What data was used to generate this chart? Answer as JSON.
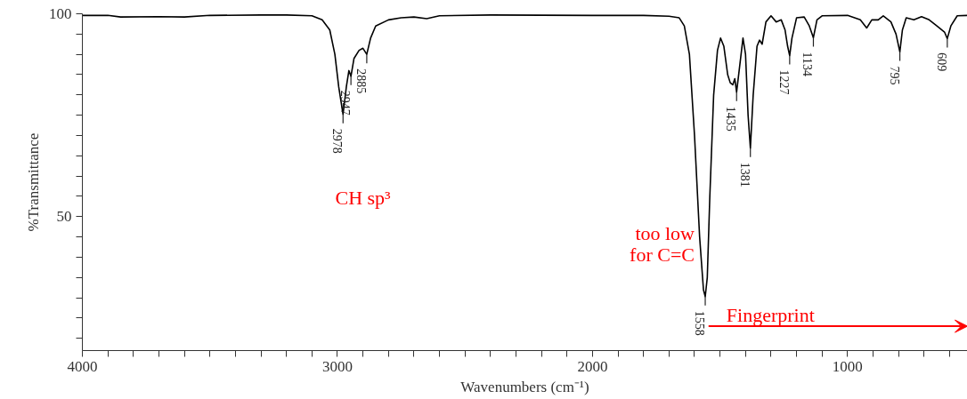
{
  "chart_data": {
    "type": "line",
    "xlabel": "Wavenumbers (cm⁻¹)",
    "ylabel": "%Transmittance",
    "xlim": [
      4000,
      530
    ],
    "ylim": [
      17,
      100
    ],
    "xticks": [
      4000,
      {
        "value": 3900,
        "label": null
      },
      {
        "value": 3800,
        "label": null
      },
      {
        "value": 3700,
        "label": null
      },
      {
        "value": 3600,
        "label": null
      },
      {
        "value": 3500,
        "label": null
      },
      {
        "value": 3400,
        "label": null
      },
      {
        "value": 3300,
        "label": null
      },
      {
        "value": 3200,
        "label": null
      },
      {
        "value": 3100,
        "label": null
      },
      3000,
      {
        "value": 2900,
        "label": null
      },
      {
        "value": 2800,
        "label": null
      },
      {
        "value": 2700,
        "label": null
      },
      {
        "value": 2600,
        "label": null
      },
      {
        "value": 2500,
        "label": null
      },
      {
        "value": 2400,
        "label": null
      },
      {
        "value": 2300,
        "label": null
      },
      {
        "value": 2200,
        "label": null
      },
      {
        "value": 2100,
        "label": null
      },
      2000,
      {
        "value": 1900,
        "label": null
      },
      {
        "value": 1800,
        "label": null
      },
      {
        "value": 1700,
        "label": null
      },
      {
        "value": 1600,
        "label": null
      },
      {
        "value": 1500,
        "label": null
      },
      {
        "value": 1400,
        "label": null
      },
      {
        "value": 1300,
        "label": null
      },
      {
        "value": 1200,
        "label": null
      },
      {
        "value": 1100,
        "label": null
      },
      1000,
      {
        "value": 900,
        "label": null
      },
      {
        "value": 800,
        "label": null
      },
      {
        "value": 700,
        "label": null
      },
      {
        "value": 600,
        "label": null
      }
    ],
    "yticks": [
      100,
      {
        "value": 95,
        "label": null
      },
      {
        "value": 90,
        "label": null
      },
      {
        "value": 85,
        "label": null
      },
      {
        "value": 80,
        "label": null
      },
      {
        "value": 75,
        "label": null
      },
      {
        "value": 70,
        "label": null
      },
      {
        "value": 65,
        "label": null
      },
      {
        "value": 60,
        "label": null
      },
      {
        "value": 55,
        "label": null
      },
      50,
      {
        "value": 45,
        "label": null
      },
      {
        "value": 40,
        "label": null
      },
      {
        "value": 35,
        "label": null
      },
      {
        "value": 30,
        "label": null
      },
      {
        "value": 25,
        "label": null
      },
      {
        "value": 20,
        "label": null
      }
    ],
    "grid": false,
    "marker": "none",
    "line_style": "solid",
    "series": [
      {
        "color": "#000000",
        "x": [
          4000,
          3900,
          3850,
          3700,
          3600,
          3500,
          3300,
          3200,
          3100,
          3060,
          3030,
          3010,
          2995,
          2978,
          2965,
          2955,
          2947,
          2935,
          2915,
          2900,
          2885,
          2870,
          2850,
          2800,
          2750,
          2700,
          2650,
          2600,
          2400,
          2000,
          1800,
          1700,
          1660,
          1640,
          1620,
          1600,
          1580,
          1565,
          1558,
          1550,
          1540,
          1525,
          1510,
          1498,
          1485,
          1470,
          1460,
          1450,
          1442,
          1435,
          1425,
          1410,
          1400,
          1390,
          1381,
          1370,
          1355,
          1345,
          1335,
          1320,
          1300,
          1280,
          1260,
          1245,
          1235,
          1227,
          1218,
          1200,
          1170,
          1150,
          1134,
          1120,
          1100,
          1000,
          950,
          925,
          905,
          880,
          860,
          830,
          810,
          795,
          785,
          770,
          740,
          710,
          680,
          650,
          620,
          609,
          595,
          570,
          530
        ],
        "values": [
          99.6,
          99.6,
          99.2,
          99.3,
          99.2,
          99.6,
          99.7,
          99.7,
          99.5,
          98.5,
          96,
          90,
          82,
          75.2,
          82,
          86,
          84.6,
          89,
          91,
          91.5,
          90,
          94,
          97,
          98.5,
          99,
          99.2,
          98.8,
          99.5,
          99.7,
          99.6,
          99.6,
          99.4,
          99,
          97,
          90,
          70,
          45,
          32,
          30.3,
          35,
          55,
          80,
          91,
          94,
          92,
          85,
          83,
          82.5,
          84,
          80.7,
          86,
          94,
          90,
          75,
          66.9,
          80,
          92,
          93.5,
          92.5,
          98,
          99.5,
          98,
          98.5,
          96,
          92,
          89.7,
          94,
          99,
          99.2,
          97,
          94.1,
          98.5,
          99.5,
          99.6,
          98.5,
          96.5,
          98.5,
          98.5,
          99.5,
          98,
          95,
          90.6,
          96,
          99,
          98.5,
          99.3,
          98.5,
          97,
          95.5,
          93.9,
          97,
          99.5,
          99.6
        ]
      }
    ],
    "annotations": [
      {
        "text": "2978",
        "x": 2978,
        "y": 75.2
      },
      {
        "text": "2947",
        "x": 2947,
        "y": 84.6
      },
      {
        "text": "2885",
        "x": 2885,
        "y": 90
      },
      {
        "text": "1558",
        "x": 1558,
        "y": 30.3
      },
      {
        "text": "1435",
        "x": 1435,
        "y": 80.7
      },
      {
        "text": "1381",
        "x": 1381,
        "y": 66.9
      },
      {
        "text": "1227",
        "x": 1227,
        "y": 89.7
      },
      {
        "text": "1134",
        "x": 1134,
        "y": 94.1
      },
      {
        "text": "795",
        "x": 795,
        "y": 90.6
      },
      {
        "text": "609",
        "x": 609,
        "y": 93.9
      },
      "CH sp³",
      "too low\nfor C=C",
      "Fingerprint"
    ]
  }
}
